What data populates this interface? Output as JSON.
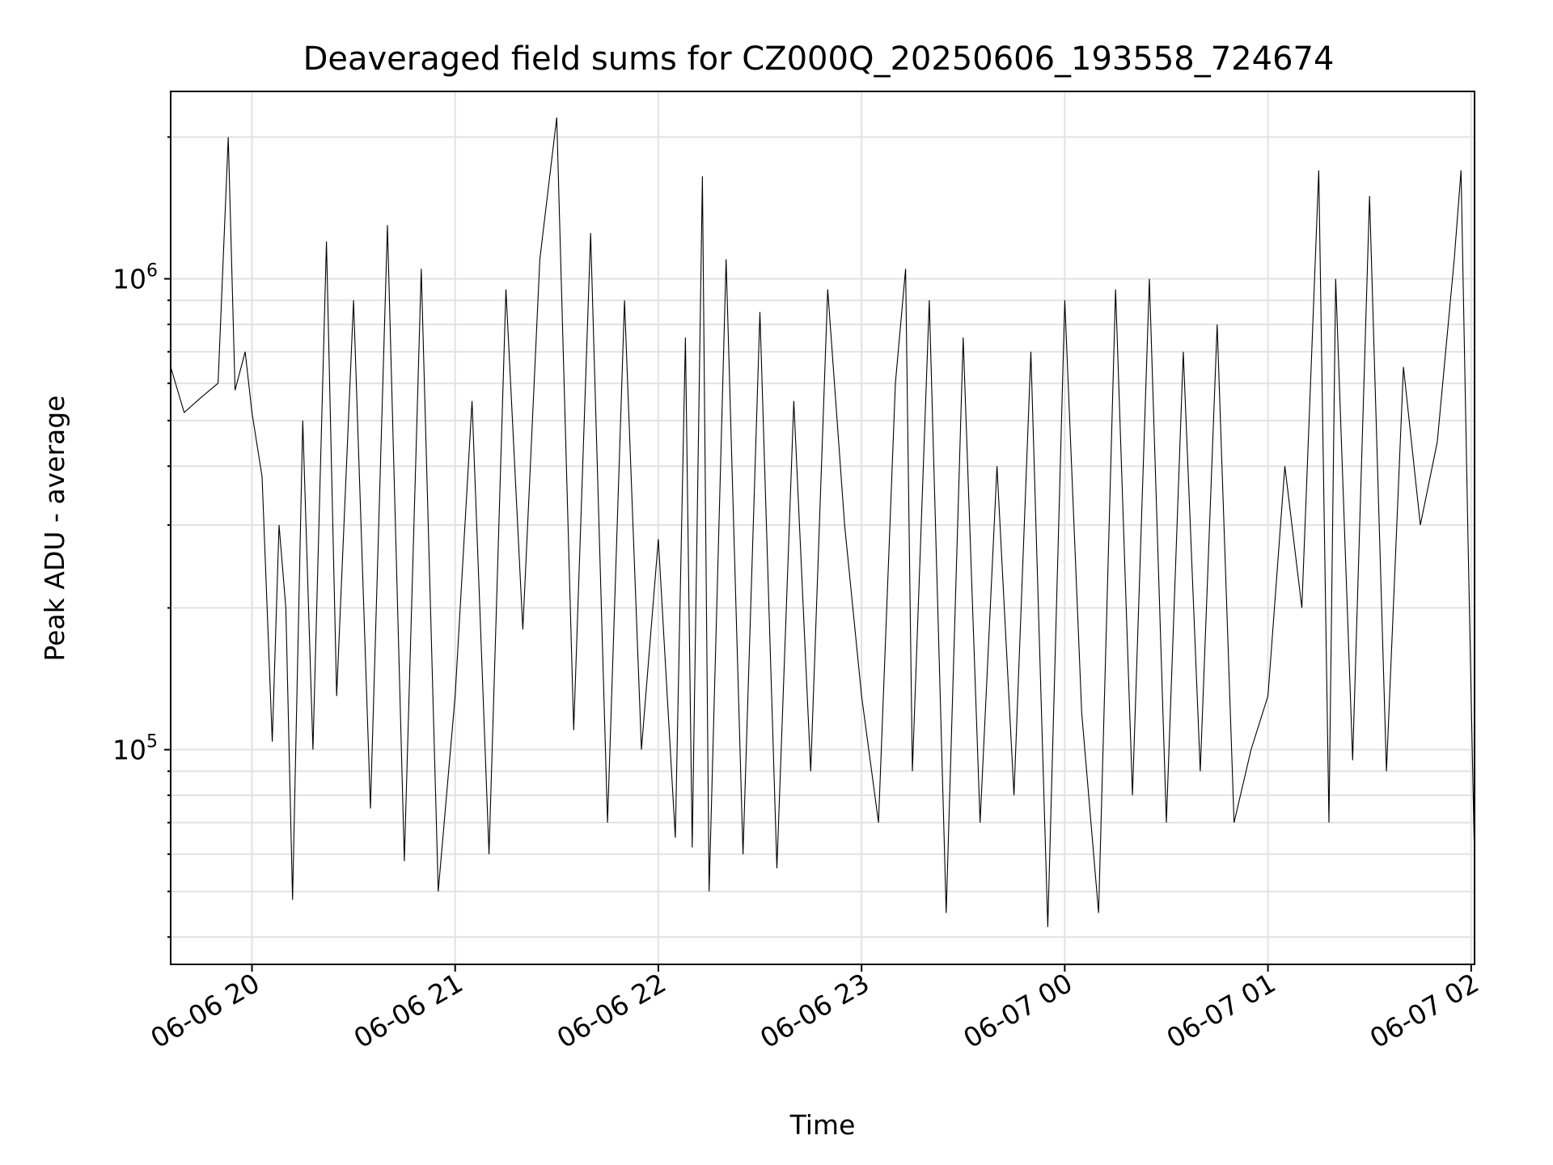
{
  "chart_data": {
    "type": "line",
    "title": "Deaveraged field sums for CZ000Q_20250606_193558_724674",
    "xlabel": "Time",
    "ylabel": "Peak ADU - average",
    "yscale": "log",
    "grid": true,
    "line_color": "#000000",
    "grid_color": "#e2e2e2",
    "xlim": [
      "2025-06-06 19:36",
      "2025-06-07 02:01"
    ],
    "ylim": [
      35000,
      2500000
    ],
    "x_ticks": [
      {
        "t": "2025-06-06 20:00",
        "label": "06-06 20"
      },
      {
        "t": "2025-06-06 21:00",
        "label": "06-06 21"
      },
      {
        "t": "2025-06-06 22:00",
        "label": "06-06 22"
      },
      {
        "t": "2025-06-06 23:00",
        "label": "06-06 23"
      },
      {
        "t": "2025-06-07 00:00",
        "label": "06-07 00"
      },
      {
        "t": "2025-06-07 01:00",
        "label": "06-07 01"
      },
      {
        "t": "2025-06-07 02:00",
        "label": "06-07 02"
      }
    ],
    "y_ticks": [
      {
        "value": 100000,
        "base": "10",
        "exp": "5"
      },
      {
        "value": 1000000,
        "base": "10",
        "exp": "6"
      }
    ],
    "series": [
      {
        "points": [
          [
            "2025-06-06 19:36",
            650000
          ],
          [
            "2025-06-06 19:40",
            520000
          ],
          [
            "2025-06-06 19:45",
            560000
          ],
          [
            "2025-06-06 19:50",
            600000
          ],
          [
            "2025-06-06 19:53",
            2000000
          ],
          [
            "2025-06-06 19:55",
            580000
          ],
          [
            "2025-06-06 19:58",
            700000
          ],
          [
            "2025-06-06 20:00",
            520000
          ],
          [
            "2025-06-06 20:03",
            380000
          ],
          [
            "2025-06-06 20:06",
            104000
          ],
          [
            "2025-06-06 20:08",
            300000
          ],
          [
            "2025-06-06 20:10",
            200000
          ],
          [
            "2025-06-06 20:12",
            48000
          ],
          [
            "2025-06-06 20:15",
            500000
          ],
          [
            "2025-06-06 20:18",
            100000
          ],
          [
            "2025-06-06 20:22",
            1200000
          ],
          [
            "2025-06-06 20:25",
            130000
          ],
          [
            "2025-06-06 20:30",
            900000
          ],
          [
            "2025-06-06 20:35",
            75000
          ],
          [
            "2025-06-06 20:40",
            1300000
          ],
          [
            "2025-06-06 20:45",
            58000
          ],
          [
            "2025-06-06 20:50",
            1050000
          ],
          [
            "2025-06-06 20:55",
            50000
          ],
          [
            "2025-06-06 21:00",
            130000
          ],
          [
            "2025-06-06 21:05",
            550000
          ],
          [
            "2025-06-06 21:10",
            60000
          ],
          [
            "2025-06-06 21:15",
            950000
          ],
          [
            "2025-06-06 21:20",
            180000
          ],
          [
            "2025-06-06 21:25",
            1100000
          ],
          [
            "2025-06-06 21:30",
            2200000
          ],
          [
            "2025-06-06 21:35",
            110000
          ],
          [
            "2025-06-06 21:40",
            1250000
          ],
          [
            "2025-06-06 21:45",
            70000
          ],
          [
            "2025-06-06 21:50",
            900000
          ],
          [
            "2025-06-06 21:55",
            100000
          ],
          [
            "2025-06-06 22:00",
            280000
          ],
          [
            "2025-06-06 22:05",
            65000
          ],
          [
            "2025-06-06 22:08",
            750000
          ],
          [
            "2025-06-06 22:10",
            62000
          ],
          [
            "2025-06-06 22:13",
            1650000
          ],
          [
            "2025-06-06 22:15",
            50000
          ],
          [
            "2025-06-06 22:20",
            1100000
          ],
          [
            "2025-06-06 22:25",
            60000
          ],
          [
            "2025-06-06 22:30",
            850000
          ],
          [
            "2025-06-06 22:35",
            56000
          ],
          [
            "2025-06-06 22:40",
            550000
          ],
          [
            "2025-06-06 22:45",
            90000
          ],
          [
            "2025-06-06 22:50",
            950000
          ],
          [
            "2025-06-06 22:55",
            300000
          ],
          [
            "2025-06-06 23:00",
            130000
          ],
          [
            "2025-06-06 23:05",
            70000
          ],
          [
            "2025-06-06 23:10",
            600000
          ],
          [
            "2025-06-06 23:13",
            1050000
          ],
          [
            "2025-06-06 23:15",
            90000
          ],
          [
            "2025-06-06 23:20",
            900000
          ],
          [
            "2025-06-06 23:25",
            45000
          ],
          [
            "2025-06-06 23:30",
            750000
          ],
          [
            "2025-06-06 23:35",
            70000
          ],
          [
            "2025-06-06 23:40",
            400000
          ],
          [
            "2025-06-06 23:45",
            80000
          ],
          [
            "2025-06-06 23:50",
            700000
          ],
          [
            "2025-06-06 23:55",
            42000
          ],
          [
            "2025-06-07 00:00",
            900000
          ],
          [
            "2025-06-07 00:05",
            120000
          ],
          [
            "2025-06-07 00:10",
            45000
          ],
          [
            "2025-06-07 00:15",
            950000
          ],
          [
            "2025-06-07 00:20",
            80000
          ],
          [
            "2025-06-07 00:25",
            1000000
          ],
          [
            "2025-06-07 00:30",
            70000
          ],
          [
            "2025-06-07 00:35",
            700000
          ],
          [
            "2025-06-07 00:40",
            90000
          ],
          [
            "2025-06-07 00:45",
            800000
          ],
          [
            "2025-06-07 00:50",
            70000
          ],
          [
            "2025-06-07 00:55",
            100000
          ],
          [
            "2025-06-07 01:00",
            130000
          ],
          [
            "2025-06-07 01:05",
            400000
          ],
          [
            "2025-06-07 01:10",
            200000
          ],
          [
            "2025-06-07 01:15",
            1700000
          ],
          [
            "2025-06-07 01:18",
            70000
          ],
          [
            "2025-06-07 01:20",
            1000000
          ],
          [
            "2025-06-07 01:25",
            95000
          ],
          [
            "2025-06-07 01:30",
            1500000
          ],
          [
            "2025-06-07 01:35",
            90000
          ],
          [
            "2025-06-07 01:40",
            650000
          ],
          [
            "2025-06-07 01:45",
            300000
          ],
          [
            "2025-06-07 01:50",
            450000
          ],
          [
            "2025-06-07 01:55",
            1100000
          ],
          [
            "2025-06-07 01:57",
            1700000
          ],
          [
            "2025-06-07 01:59",
            300000
          ],
          [
            "2025-06-07 02:00",
            130000
          ],
          [
            "2025-06-07 02:01",
            58000
          ]
        ]
      }
    ]
  }
}
